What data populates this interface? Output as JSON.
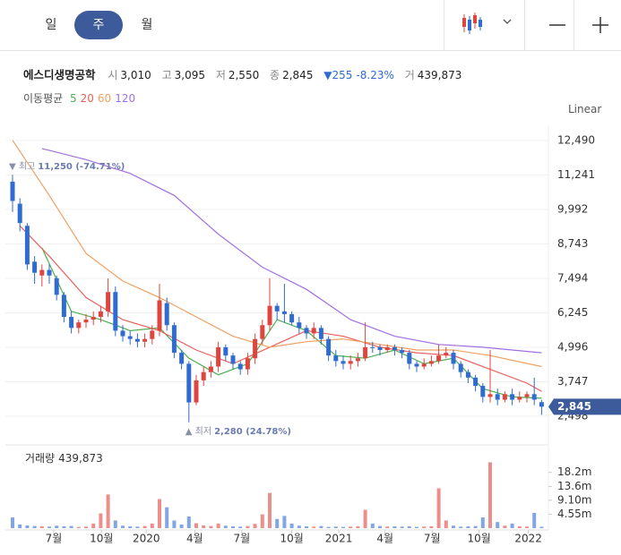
{
  "tabs": [
    "일",
    "주",
    "월"
  ],
  "header": {
    "name": "에스디생명공학",
    "open_label": "시",
    "open": "3,010",
    "high_label": "고",
    "high": "3,095",
    "low_label": "저",
    "low": "2,550",
    "close_label": "종",
    "close": "2,845",
    "change": "▼255",
    "change_pct": "-8.23%",
    "volume_label": "거",
    "volume": "439,873"
  },
  "ma_legend_label": "이동평균",
  "scale_label": "Linear",
  "chart_data": {
    "type": "candlestick",
    "x": [
      0,
      1,
      2,
      3,
      4,
      5,
      6,
      7,
      8,
      9,
      10,
      11,
      12,
      13,
      14,
      15,
      16,
      17,
      18,
      19,
      20,
      21,
      22,
      23,
      24,
      25,
      26,
      27,
      28,
      29,
      30,
      31,
      32,
      33,
      34,
      35,
      36,
      37,
      38,
      39,
      40,
      41,
      42,
      43,
      44,
      45,
      46,
      47,
      48,
      49,
      50,
      51,
      52,
      53,
      54,
      55,
      56,
      57,
      58,
      59,
      60,
      61,
      62,
      63,
      64,
      65,
      66,
      67,
      68,
      69,
      70,
      71,
      72
    ],
    "open": [
      11000,
      10200,
      9400,
      8100,
      7600,
      7800,
      7500,
      6900,
      6100,
      5700,
      5900,
      6000,
      6100,
      6300,
      7000,
      5600,
      5400,
      5300,
      5200,
      5300,
      5600,
      6600,
      5800,
      4800,
      4400,
      3000,
      3800,
      4100,
      4300,
      5000,
      4700,
      4400,
      4200,
      4600,
      5300,
      5800,
      6500,
      6300,
      6200,
      5900,
      5700,
      5500,
      5700,
      5300,
      4700,
      4500,
      4400,
      4500,
      4600,
      5000,
      5000,
      4900,
      5000,
      4900,
      4800,
      4400,
      4300,
      4400,
      4500,
      4700,
      4800,
      4400,
      4100,
      3900,
      3600,
      3200,
      3300,
      3100,
      3300,
      3100,
      3200,
      3300,
      3010
    ],
    "high": [
      11250,
      10400,
      9500,
      8300,
      8000,
      8000,
      7600,
      7000,
      6300,
      6000,
      6200,
      6300,
      6500,
      7500,
      7200,
      5800,
      5600,
      5500,
      5500,
      5800,
      7300,
      6800,
      5900,
      4900,
      4500,
      4000,
      4300,
      4500,
      5200,
      5100,
      4800,
      4500,
      4800,
      5500,
      6000,
      7500,
      6600,
      7300,
      6300,
      6100,
      5800,
      5900,
      5800,
      5400,
      4900,
      4700,
      4700,
      4800,
      5900,
      5200,
      5100,
      5100,
      5100,
      5000,
      4900,
      4500,
      4600,
      4700,
      5100,
      5000,
      4900,
      4500,
      4200,
      4000,
      3700,
      4900,
      3500,
      3400,
      3500,
      3400,
      3400,
      3900,
      3095
    ],
    "low": [
      9900,
      9200,
      7800,
      7300,
      7200,
      7300,
      6700,
      5900,
      5500,
      5500,
      5700,
      5800,
      5900,
      6100,
      5400,
      5200,
      5100,
      5000,
      5000,
      5100,
      5400,
      5600,
      4600,
      4200,
      2280,
      2900,
      3600,
      3900,
      4100,
      4500,
      4200,
      4000,
      4000,
      4400,
      5100,
      5600,
      6000,
      5900,
      5800,
      5500,
      5300,
      5300,
      5100,
      4500,
      4300,
      4200,
      4200,
      4300,
      4500,
      4800,
      4700,
      4800,
      4700,
      4600,
      4200,
      4100,
      4200,
      4300,
      4400,
      4600,
      4200,
      3900,
      3700,
      3400,
      3000,
      3000,
      2900,
      3000,
      2900,
      3000,
      3000,
      2900,
      2550
    ],
    "close": [
      10300,
      9500,
      8000,
      7700,
      7800,
      7600,
      6900,
      6100,
      5700,
      5900,
      6000,
      6100,
      6300,
      7000,
      5600,
      5400,
      5300,
      5200,
      5300,
      5600,
      6700,
      5800,
      4800,
      4400,
      3000,
      3800,
      4100,
      4300,
      5000,
      4700,
      4400,
      4200,
      4600,
      5300,
      5800,
      6500,
      6300,
      6200,
      5900,
      5700,
      5500,
      5700,
      5300,
      4700,
      4500,
      4400,
      4500,
      4600,
      5000,
      5000,
      4900,
      5000,
      4900,
      4800,
      4400,
      4300,
      4400,
      4500,
      4700,
      4800,
      4400,
      4100,
      3900,
      3600,
      3200,
      3300,
      3100,
      3300,
      3100,
      3200,
      3300,
      3100,
      2845
    ],
    "up_color": "#e0443e",
    "down_color": "#2f6bd0",
    "xlim": [
      -1,
      73
    ],
    "xticks": [
      {
        "value": 5.6,
        "label": "7월"
      },
      {
        "value": 12.1,
        "label": "10월"
      },
      {
        "value": 18.2,
        "label": "2020"
      },
      {
        "value": 24.8,
        "label": "4월"
      },
      {
        "value": 31.2,
        "label": "7월"
      },
      {
        "value": 38.0,
        "label": "10월"
      },
      {
        "value": 44.4,
        "label": "2021"
      },
      {
        "value": 50.7,
        "label": "4월"
      },
      {
        "value": 57.1,
        "label": "7월"
      },
      {
        "value": 63.5,
        "label": "10월"
      },
      {
        "value": 70.2,
        "label": "2022"
      }
    ],
    "ylim": [
      2078,
      13041
    ],
    "yticks": [
      {
        "value": 12490,
        "label": "12,490"
      },
      {
        "value": 11241,
        "label": "11,241"
      },
      {
        "value": 9992,
        "label": "9,992"
      },
      {
        "value": 8743,
        "label": "8,743"
      },
      {
        "value": 7494,
        "label": "7,494"
      },
      {
        "value": 6245,
        "label": "6,245"
      },
      {
        "value": 4996,
        "label": "4,996"
      },
      {
        "value": 3747,
        "label": "3,747"
      },
      {
        "value": 2498,
        "label": "2,498"
      }
    ],
    "grid": true,
    "price_tag": {
      "value": 2845,
      "label": "2,845",
      "color": "#3d5a9a"
    },
    "ma": [
      {
        "name": "5",
        "color": "#4caf50",
        "x": [
          4,
          8,
          12,
          16,
          20,
          24,
          28,
          32,
          36,
          40,
          44,
          48,
          52,
          56,
          60,
          64,
          68,
          72
        ],
        "values": [
          8600,
          6300,
          6000,
          5600,
          5700,
          4600,
          4000,
          4400,
          6000,
          5600,
          4700,
          4600,
          4900,
          4400,
          4600,
          3500,
          3200,
          3150
        ]
      },
      {
        "name": "20",
        "color": "#e8615a",
        "x": [
          1,
          5,
          10,
          15,
          20,
          25,
          30,
          35,
          40,
          45,
          50,
          55,
          60,
          65,
          70,
          72
        ],
        "values": [
          9400,
          8300,
          6800,
          6000,
          5600,
          4900,
          4400,
          5000,
          5600,
          5400,
          5000,
          4800,
          4700,
          4200,
          3700,
          3400
        ]
      },
      {
        "name": "60",
        "color": "#f0a060",
        "x": [
          0,
          5,
          10,
          15,
          20,
          25,
          30,
          35,
          40,
          45,
          50,
          55,
          60,
          65,
          72
        ],
        "values": [
          12500,
          10500,
          8400,
          7400,
          6800,
          6100,
          5400,
          5000,
          5200,
          5300,
          5100,
          4900,
          4900,
          4700,
          4300
        ]
      },
      {
        "name": "120",
        "color": "#a070e0",
        "x": [
          4,
          10,
          16,
          22,
          28,
          34,
          40,
          46,
          52,
          58,
          64,
          72
        ],
        "values": [
          12200,
          11800,
          11300,
          10500,
          9100,
          7900,
          7100,
          6000,
          5400,
          5100,
          5000,
          4800
        ]
      }
    ],
    "annotations": [
      {
        "label": "▼ 최고",
        "text": "11,250 (-74.71%)",
        "x": 0,
        "y": 11250
      },
      {
        "label": "▲ 최저",
        "text": "2,280 (24.78%)",
        "x": 24,
        "y": 2280
      }
    ],
    "volume": {
      "label": "거래량",
      "value_label": "439,873",
      "values": [
        3500000,
        1200000,
        900000,
        700000,
        600000,
        500000,
        800000,
        600000,
        700000,
        400000,
        500000,
        1500000,
        4800000,
        11000000,
        2500000,
        800000,
        600000,
        500000,
        700000,
        1500000,
        9500000,
        6800000,
        2500000,
        1200000,
        3800000,
        1600000,
        900000,
        700000,
        1500000,
        800000,
        600000,
        500000,
        700000,
        1400000,
        4500000,
        11500000,
        3000000,
        4000000,
        1500000,
        800000,
        600000,
        500000,
        700000,
        400000,
        500000,
        400000,
        500000,
        600000,
        6000000,
        1500000,
        700000,
        500000,
        600000,
        500000,
        600000,
        400000,
        500000,
        600000,
        13000000,
        2500000,
        800000,
        500000,
        600000,
        700000,
        3500000,
        21500000,
        2000000,
        800000,
        1500000,
        600000,
        500000,
        5000000,
        439873
      ],
      "ylim": [
        0,
        26300000
      ],
      "yticks": [
        {
          "value": 18200000,
          "label": "18.2m"
        },
        {
          "value": 13600000,
          "label": "13.6m"
        },
        {
          "value": 9100000,
          "label": "9.10m"
        },
        {
          "value": 4550000,
          "label": "4.55m"
        }
      ]
    }
  }
}
